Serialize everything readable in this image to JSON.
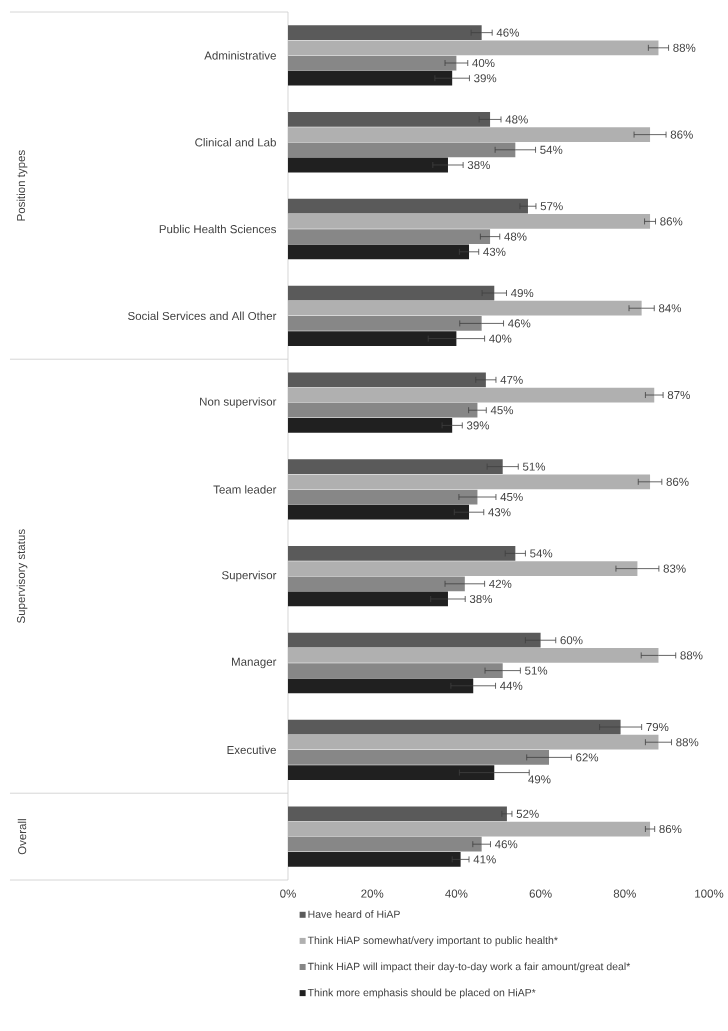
{
  "chart_data": {
    "type": "bar",
    "orientation": "horizontal",
    "categories": [
      "Administrative",
      "Clinical and Lab",
      "Public Health Sciences",
      "Social Services and All Other",
      "Non supervisor",
      "Team leader",
      "Supervisor",
      "Manager",
      "Executive",
      null
    ],
    "series": [
      {
        "name": "Have heard of HiAP",
        "color": "#5a5a5a",
        "values": [
          46,
          48,
          57,
          49,
          47,
          51,
          54,
          60,
          79,
          52
        ],
        "errors": [
          2.5,
          2.6,
          1.9,
          2.9,
          2.4,
          3.7,
          2.4,
          3.6,
          5.0,
          1.2
        ],
        "value_labels": [
          "46%",
          "48%",
          "57%",
          "49%",
          "47%",
          "51%",
          "54%",
          "60%",
          "79%",
          "52%"
        ]
      },
      {
        "name": "Think HiAP somewhat/very important to public health*",
        "color": "#b0b0b0",
        "values": [
          88,
          86,
          86,
          84,
          87,
          86,
          83,
          88,
          88,
          86
        ],
        "errors": [
          2.4,
          3.8,
          1.3,
          3.0,
          2.1,
          2.8,
          5.1,
          4.1,
          3.1,
          1.1
        ],
        "value_labels": [
          "88%",
          "86%",
          "86%",
          "84%",
          "87%",
          "86%",
          "83%",
          "88%",
          "88%",
          "86%"
        ]
      },
      {
        "name": "Think HiAP will impact their day-to-day work a fair amount/great deal*",
        "color": "#878787",
        "values": [
          40,
          54,
          48,
          46,
          45,
          45,
          42,
          51,
          62,
          46
        ],
        "errors": [
          2.7,
          4.8,
          2.3,
          5.2,
          2.1,
          4.4,
          4.7,
          4.2,
          5.3,
          2.1
        ],
        "value_labels": [
          "40%",
          "54%",
          "48%",
          "46%",
          "45%",
          "45%",
          "42%",
          "51%",
          "62%",
          "46%"
        ]
      },
      {
        "name": "Think more emphasis should be placed on HiAP*",
        "color": "#202020",
        "values": [
          39,
          38,
          43,
          40,
          39,
          43,
          38,
          44,
          49,
          41
        ],
        "errors": [
          4.1,
          3.6,
          2.3,
          6.7,
          2.4,
          3.5,
          4.1,
          5.3,
          8.3,
          2.0
        ],
        "value_labels": [
          "39%",
          "38%",
          "43%",
          "40%",
          "39%",
          "43%",
          "38%",
          "44%",
          "49%",
          "41%"
        ]
      }
    ],
    "xlim": [
      0,
      100
    ],
    "xticks": [
      {
        "value": 0,
        "label": "0%"
      },
      {
        "value": 20,
        "label": "20%"
      },
      {
        "value": 40,
        "label": "40%"
      },
      {
        "value": 60,
        "label": "60%"
      },
      {
        "value": 80,
        "label": "80%"
      },
      {
        "value": 100,
        "label": "100%"
      }
    ],
    "annotations": [
      "Position types",
      "Supervisory status",
      "Overall"
    ],
    "legend": "bottom",
    "grid": false
  }
}
